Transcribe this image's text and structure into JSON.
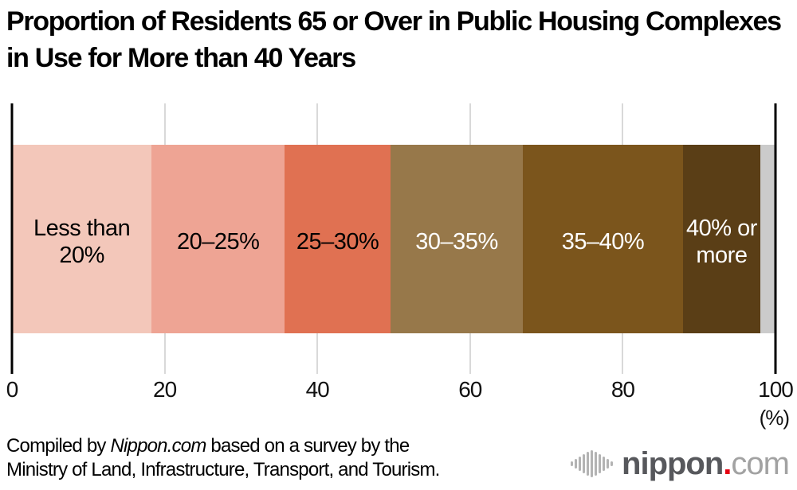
{
  "title": "Proportion of Residents 65 or Over in Public Housing Complexes in Use for More than 40 Years",
  "chart_data": {
    "type": "bar",
    "orientation": "horizontal-stacked",
    "title": "Proportion of Residents 65 or Over in Public Housing Complexes in Use for More than 40 Years",
    "xlim": [
      0,
      100
    ],
    "x_ticks": [
      "0",
      "20",
      "40",
      "60",
      "80",
      "100"
    ],
    "x_tick_values": [
      0,
      20,
      40,
      60,
      80,
      100
    ],
    "unit_label": "(%)",
    "grid": "vertical-light-gray",
    "legend": "labels-inside-segments",
    "segments": [
      {
        "label": "Less than\n20%",
        "value": 18.3,
        "color": "#f3c7ba",
        "text_color": "#000000"
      },
      {
        "label": "20–25%",
        "value": 17.4,
        "color": "#eea494",
        "text_color": "#000000"
      },
      {
        "label": "25–30%",
        "value": 13.9,
        "color": "#e07152",
        "text_color": "#000000"
      },
      {
        "label": "30–35%",
        "value": 17.3,
        "color": "#97784a",
        "text_color": "#ffffff"
      },
      {
        "label": "35–40%",
        "value": 21.0,
        "color": "#7b551c",
        "text_color": "#ffffff"
      },
      {
        "label": "40% or\nmore",
        "value": 10.1,
        "color": "#5a3e16",
        "text_color": "#ffffff"
      },
      {
        "label": "",
        "value": 2.0,
        "color": "#cbcbcb",
        "text_color": "#000000"
      }
    ]
  },
  "footer": {
    "line1_prefix": "Compiled by ",
    "line1_source": "Nippon.com",
    "line1_suffix": " based on a survey by the",
    "line2": "Ministry of Land, Infrastructure, Transport, and Tourism."
  },
  "logo": {
    "name": "nippon",
    "dot": ".",
    "tld": "com",
    "accent_color": "#e60012"
  }
}
